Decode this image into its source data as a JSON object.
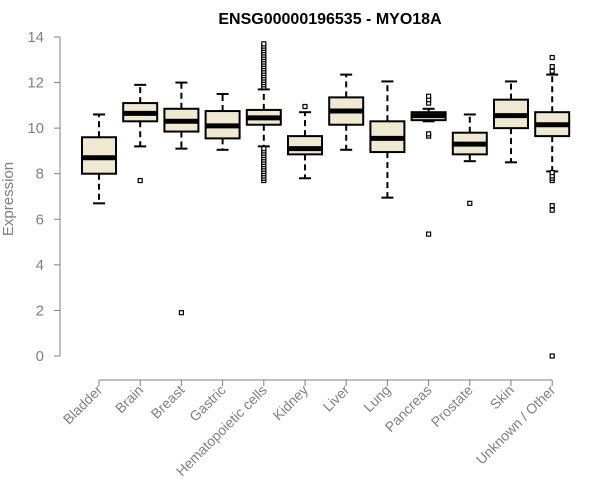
{
  "chart_data": {
    "type": "box",
    "title": "ENSG00000196535 - MYO18A",
    "xlabel": "",
    "ylabel": "Expression",
    "ylim": [
      0,
      14
    ],
    "yticks": [
      0,
      2,
      4,
      6,
      8,
      10,
      12,
      14
    ],
    "box_fill": "#efe9d2",
    "categories": [
      "Bladder",
      "Brain",
      "Breast",
      "Gastric",
      "Hematopoietic cells",
      "Kidney",
      "Liver",
      "Lung",
      "Pancreas",
      "Prostate",
      "Skin",
      "Unknown / Other"
    ],
    "boxes": [
      {
        "label": "Bladder",
        "whislo": 6.7,
        "q1": 8.0,
        "med": 8.7,
        "q3": 9.6,
        "whishi": 10.6,
        "fliers": []
      },
      {
        "label": "Brain",
        "whislo": 9.2,
        "q1": 10.3,
        "med": 10.65,
        "q3": 11.1,
        "whishi": 11.9,
        "fliers": [
          7.7
        ]
      },
      {
        "label": "Breast",
        "whislo": 9.1,
        "q1": 9.85,
        "med": 10.3,
        "q3": 10.85,
        "whishi": 12.0,
        "fliers": [
          1.9
        ]
      },
      {
        "label": "Gastric",
        "whislo": 9.05,
        "q1": 9.55,
        "med": 10.1,
        "q3": 10.75,
        "whishi": 11.5,
        "fliers": []
      },
      {
        "label": "Hematopoietic cells",
        "whislo": 9.2,
        "q1": 10.15,
        "med": 10.45,
        "q3": 10.8,
        "whishi": 11.7,
        "fliers": [
          7.7,
          7.8,
          7.9,
          8.0,
          8.1,
          8.2,
          8.3,
          8.4,
          8.5,
          8.6,
          8.7,
          8.8,
          8.9,
          9.0,
          9.1,
          11.8,
          11.9,
          12.0,
          12.1,
          12.2,
          12.3,
          12.4,
          12.5,
          12.6,
          12.7,
          12.8,
          12.9,
          13.0,
          13.1,
          13.2,
          13.3,
          13.4,
          13.5,
          13.6,
          13.7
        ]
      },
      {
        "label": "Kidney",
        "whislo": 7.8,
        "q1": 8.85,
        "med": 9.1,
        "q3": 9.65,
        "whishi": 10.7,
        "fliers": [
          10.95
        ]
      },
      {
        "label": "Liver",
        "whislo": 9.05,
        "q1": 10.15,
        "med": 10.75,
        "q3": 11.35,
        "whishi": 12.35,
        "fliers": []
      },
      {
        "label": "Lung",
        "whislo": 6.95,
        "q1": 8.95,
        "med": 9.55,
        "q3": 10.3,
        "whishi": 12.05,
        "fliers": []
      },
      {
        "label": "Pancreas",
        "whislo": 10.3,
        "q1": 10.35,
        "med": 10.55,
        "q3": 10.7,
        "whishi": 10.85,
        "fliers": [
          5.35,
          9.65,
          9.75,
          11.1,
          11.25,
          11.4
        ]
      },
      {
        "label": "Prostate",
        "whislo": 8.55,
        "q1": 8.85,
        "med": 9.3,
        "q3": 9.8,
        "whishi": 10.6,
        "fliers": [
          6.7
        ]
      },
      {
        "label": "Skin",
        "whislo": 8.5,
        "q1": 10.0,
        "med": 10.55,
        "q3": 11.25,
        "whishi": 12.05,
        "fliers": []
      },
      {
        "label": "Unknown / Other",
        "whislo": 8.1,
        "q1": 9.65,
        "med": 10.15,
        "q3": 10.7,
        "whishi": 12.35,
        "fliers": [
          0.0,
          6.4,
          6.6,
          7.7,
          7.8,
          7.9,
          8.05,
          12.5,
          12.7,
          13.1
        ]
      }
    ]
  }
}
